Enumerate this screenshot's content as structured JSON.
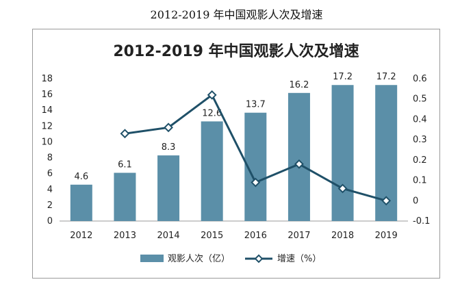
{
  "caption": "2012-2019 年中国观影人次及增速",
  "chart_data": {
    "type": "bar",
    "title": "2012-2019 年中国观影人次及增速",
    "categories": [
      "2012",
      "2013",
      "2014",
      "2015",
      "2016",
      "2017",
      "2018",
      "2019"
    ],
    "series": [
      {
        "name": "观影人次（亿）",
        "type": "bar",
        "axis": "left",
        "color": "#5b8fa8",
        "values": [
          4.6,
          6.1,
          8.3,
          12.6,
          13.7,
          16.2,
          17.2,
          17.2
        ],
        "labels": [
          "4.6",
          "6.1",
          "8.3",
          "12.6",
          "13.7",
          "16.2",
          "17.2",
          "17.2"
        ]
      },
      {
        "name": "增速（%）",
        "type": "line",
        "axis": "right",
        "color": "#1f5068",
        "values": [
          null,
          0.33,
          0.36,
          0.52,
          0.09,
          0.18,
          0.06,
          0.0
        ]
      }
    ],
    "y_left": {
      "min": 0,
      "max": 18,
      "ticks": [
        "0",
        "2",
        "4",
        "6",
        "8",
        "10",
        "12",
        "14",
        "16",
        "18"
      ]
    },
    "y_right": {
      "min": -0.1,
      "max": 0.6,
      "ticks": [
        "-0.1",
        "0",
        "0.1",
        "0.2",
        "0.3",
        "0.4",
        "0.5",
        "0.6"
      ]
    },
    "grid": false,
    "legend_position": "bottom"
  }
}
